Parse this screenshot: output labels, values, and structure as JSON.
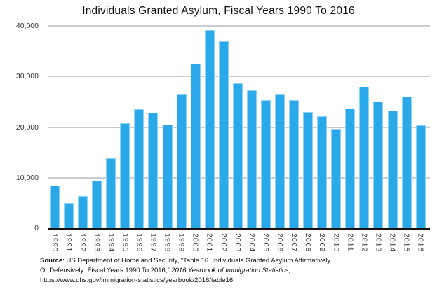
{
  "title": "Individuals Granted Asylum, Fiscal Years 1990 To 2016",
  "chart_data": {
    "type": "bar",
    "title": "Individuals Granted Asylum, Fiscal Years 1990 To 2016",
    "categories": [
      "1990",
      "1991",
      "1992",
      "1993",
      "1994",
      "1995",
      "1996",
      "1997",
      "1998",
      "1999",
      "2000",
      "2001",
      "2002",
      "2003",
      "2004",
      "2005",
      "2006",
      "2007",
      "2008",
      "2009",
      "2010",
      "2011",
      "2012",
      "2013",
      "2014",
      "2015",
      "2016"
    ],
    "values": [
      8472,
      5035,
      6307,
      9414,
      13798,
      20700,
      23500,
      22900,
      20500,
      26500,
      32500,
      39200,
      36900,
      28700,
      27300,
      25300,
      26400,
      25300,
      23000,
      22200,
      19600,
      23700,
      28000,
      25000,
      23300,
      26000,
      20400
    ],
    "xlabel": "",
    "ylabel": "",
    "ylim": [
      0,
      40000
    ],
    "yticks": [
      {
        "value": 40000,
        "label": "40,000"
      },
      {
        "value": 30000,
        "label": "30,000"
      },
      {
        "value": 20000,
        "label": "20,000"
      },
      {
        "value": 10000,
        "label": "10,000"
      },
      {
        "value": 0,
        "label": "0"
      }
    ],
    "grid": true,
    "legend": "none",
    "bar_color": "#29a9ea",
    "bar_border_color": "#8fd2f4",
    "gridline_color": "#cdcdcd",
    "axis_line_color": "#111111"
  },
  "footer": {
    "source_label": "Source",
    "line1_rest": ": US Department of Homeland Security, “Table 16. Individuals Granted Asylum Affirmatively",
    "line2_normal": "Or Defensively: Fiscal Years 1990 To 2016,” ",
    "line2_italic": " 2016 Yearbook of Immigration Statistics,",
    "line3_link": "https://www.dhs.gov/immigration-statistics/yearbook/2016/table16"
  }
}
